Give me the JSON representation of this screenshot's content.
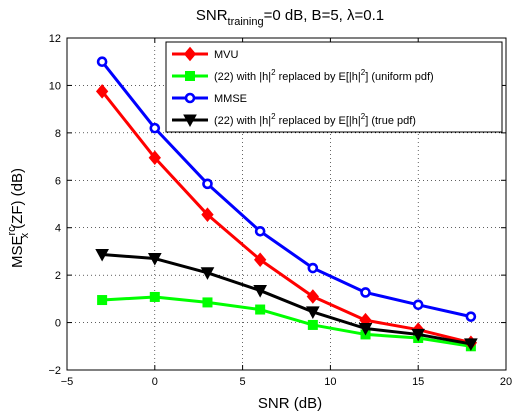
{
  "chart_data": {
    "type": "line",
    "title": {
      "prefix": "SNR",
      "subscript": "training",
      "rest": "=0 dB, B=5, λ=0.1"
    },
    "xlabel": "SNR (dB)",
    "ylabel": {
      "base": "MSE",
      "superscript": "rc",
      "subscript": "x",
      "rest": "(ZF) (dB)"
    },
    "xlim": [
      -5,
      20
    ],
    "ylim": [
      -2,
      12
    ],
    "xticks": [
      -5,
      0,
      5,
      10,
      15,
      20
    ],
    "yticks": [
      -2,
      0,
      2,
      4,
      6,
      8,
      10,
      12
    ],
    "grid": "dotted",
    "legend_position": "top-right",
    "x": [
      -3,
      0,
      3,
      6,
      9,
      12,
      15,
      18
    ],
    "series": [
      {
        "legend": {
          "before": "MVU"
        },
        "color": "#ff0000",
        "marker": "diamond",
        "values": [
          9.75,
          6.95,
          4.55,
          2.65,
          1.1,
          0.1,
          -0.3,
          -0.85
        ]
      },
      {
        "legend": {
          "before": "(22) with |h|",
          "sup1": "2",
          "mid": " replaced by E[|h|",
          "sup2": "2",
          "after": "] (uniform pdf)"
        },
        "color": "#00ff00",
        "marker": "square",
        "values": [
          0.95,
          1.08,
          0.85,
          0.55,
          -0.1,
          -0.5,
          -0.65,
          -1.0
        ]
      },
      {
        "legend": {
          "before": "MMSE"
        },
        "color": "#0000ff",
        "marker": "circle",
        "values": [
          11.0,
          8.2,
          5.85,
          3.85,
          2.3,
          1.27,
          0.75,
          0.25
        ]
      },
      {
        "legend": {
          "before": "(22) with |h|",
          "sup1": "2",
          "mid": " replaced by E[|h|",
          "sup2": "2",
          "after": "] (true pdf)"
        },
        "color": "#000000",
        "marker": "triangle-down",
        "values": [
          2.87,
          2.7,
          2.1,
          1.35,
          0.45,
          -0.25,
          -0.5,
          -0.9
        ]
      }
    ]
  }
}
